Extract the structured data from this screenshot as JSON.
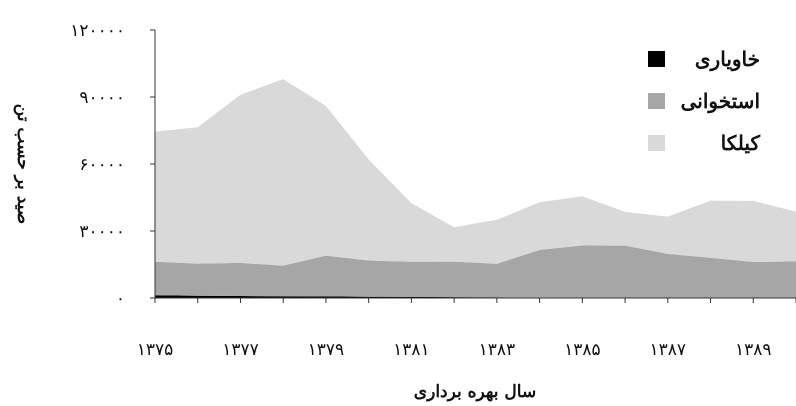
{
  "chart_data": {
    "type": "area",
    "stacked": true,
    "x": [
      1375,
      1376,
      1377,
      1378,
      1379,
      1380,
      1381,
      1382,
      1383,
      1384,
      1385,
      1386,
      1387,
      1388,
      1389,
      1390
    ],
    "x_tick_labels": [
      "۱۳۷۵",
      "۱۳۷۷",
      "۱۳۷۹",
      "۱۳۸۱",
      "۱۳۸۳",
      "۱۳۸۵",
      "۱۳۸۷",
      "۱۳۸۹"
    ],
    "x_tick_values": [
      1375,
      1377,
      1379,
      1381,
      1383,
      1385,
      1387,
      1389
    ],
    "y_tick_labels": [
      "۰",
      "۳۰۰۰۰",
      "۶۰۰۰۰",
      "۹۰۰۰۰",
      "۱۲۰۰۰۰"
    ],
    "y_tick_values": [
      0,
      30000,
      60000,
      90000,
      120000
    ],
    "ylim": [
      0,
      120000
    ],
    "xlabel": "سال بهره برداری",
    "ylabel": "صید بر حسب تن",
    "grid": false,
    "legend_position": "top-right",
    "series": [
      {
        "name": "خاویاری",
        "color": "#000000",
        "values": [
          1200,
          1000,
          900,
          800,
          700,
          600,
          500,
          400,
          300,
          250,
          200,
          150,
          150,
          150,
          100,
          100
        ]
      },
      {
        "name": "استخوانی",
        "color": "#a6a6a6",
        "values": [
          15000,
          14400,
          14800,
          13700,
          18300,
          16200,
          15700,
          15900,
          15000,
          21300,
          23300,
          23300,
          19600,
          17900,
          16000,
          16300
        ]
      },
      {
        "name": "کیلکا",
        "color": "#d9d9d9",
        "values": [
          58300,
          61100,
          75300,
          83500,
          67000,
          45200,
          26300,
          15400,
          19700,
          21300,
          22100,
          15100,
          16700,
          25500,
          27400,
          22300
        ]
      }
    ]
  }
}
